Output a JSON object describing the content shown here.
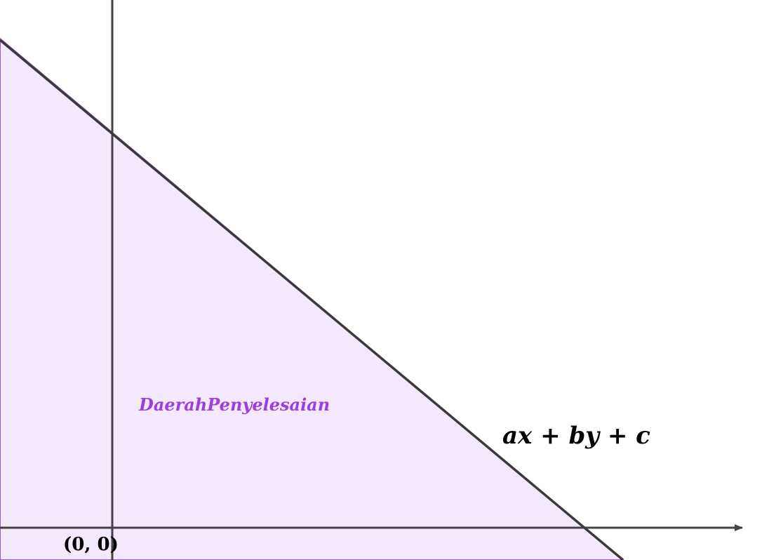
{
  "diagram": {
    "region_label": "DaerahPenyelesaian",
    "line_label": "ax + by + c",
    "origin_label": "(0, 0)",
    "colors": {
      "region_fill": "#f3e8fc",
      "region_edge": "#9b59d0",
      "region_label": "#9a3fe0",
      "axis": "#444444",
      "line": "#3a3a3a",
      "text": "#000000"
    }
  }
}
